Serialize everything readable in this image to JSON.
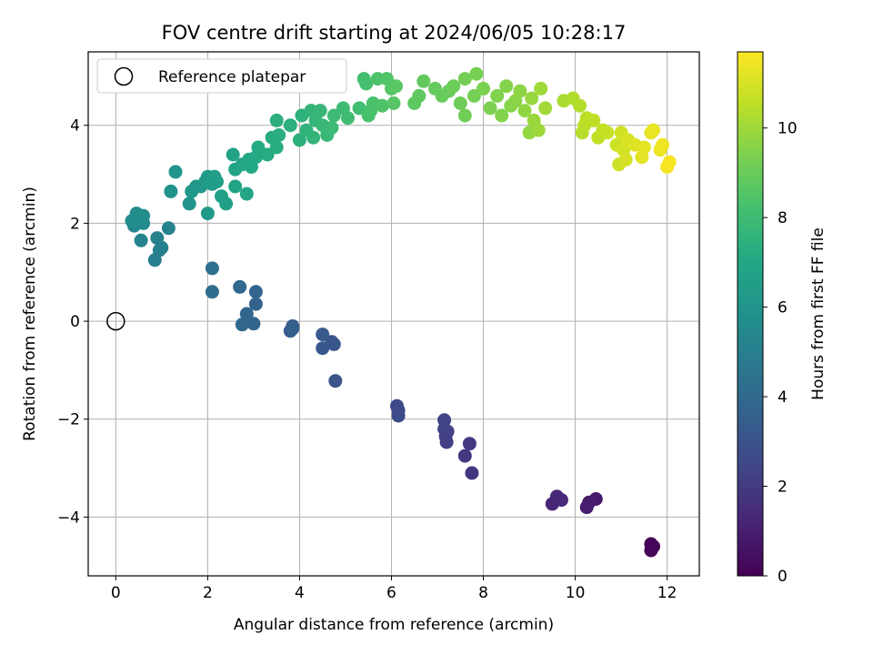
{
  "chart_data": {
    "type": "scatter",
    "title": "FOV centre drift starting at 2024/06/05 10:28:17",
    "xlabel": "Angular distance from reference (arcmin)",
    "ylabel": "Rotation from reference (arcmin)",
    "colorbar_label": "Hours from first FF file",
    "xlim": [
      -0.6,
      12.7
    ],
    "ylim": [
      -5.2,
      5.5
    ],
    "xticks": [
      0,
      2,
      4,
      6,
      8,
      10,
      12
    ],
    "yticks": [
      -4,
      -2,
      0,
      2,
      4
    ],
    "colorbar_range": [
      0,
      11.7
    ],
    "colorbar_ticks": [
      0,
      2,
      4,
      6,
      8,
      10
    ],
    "colormap": "viridis",
    "grid": true,
    "legend": {
      "placement": "top-left",
      "label": "Reference platepar"
    },
    "reference_point": {
      "x": 0,
      "y": 0
    },
    "points": [
      [
        11.65,
        -4.55,
        0.05
      ],
      [
        11.65,
        -4.68,
        0.1
      ],
      [
        11.7,
        -4.6,
        0.15
      ],
      [
        10.45,
        -3.63,
        0.8
      ],
      [
        10.3,
        -3.7,
        0.9
      ],
      [
        10.25,
        -3.8,
        0.95
      ],
      [
        9.5,
        -3.73,
        1.2
      ],
      [
        9.6,
        -3.58,
        1.3
      ],
      [
        9.7,
        -3.65,
        1.35
      ],
      [
        7.75,
        -3.1,
        1.8
      ],
      [
        7.6,
        -2.75,
        1.9
      ],
      [
        7.7,
        -2.5,
        1.95
      ],
      [
        7.2,
        -2.47,
        2.1
      ],
      [
        7.18,
        -2.35,
        2.15
      ],
      [
        7.22,
        -2.25,
        2.2
      ],
      [
        7.15,
        -2.2,
        2.25
      ],
      [
        7.15,
        -2.02,
        2.3
      ],
      [
        6.12,
        -1.73,
        2.6
      ],
      [
        6.15,
        -1.82,
        2.65
      ],
      [
        6.15,
        -1.93,
        2.7
      ],
      [
        4.78,
        -1.22,
        3.0
      ],
      [
        4.75,
        -0.47,
        3.1
      ],
      [
        4.7,
        -0.42,
        3.15
      ],
      [
        4.5,
        -0.55,
        3.2
      ],
      [
        4.5,
        -0.27,
        3.25
      ],
      [
        3.85,
        -0.1,
        3.4
      ],
      [
        3.8,
        -0.2,
        3.45
      ],
      [
        3.85,
        -0.15,
        3.5
      ],
      [
        3.05,
        0.35,
        3.7
      ],
      [
        3.05,
        0.6,
        3.75
      ],
      [
        3.0,
        -0.05,
        3.8
      ],
      [
        2.85,
        0.15,
        3.85
      ],
      [
        2.75,
        -0.07,
        3.9
      ],
      [
        2.7,
        0.7,
        3.95
      ],
      [
        2.1,
        0.6,
        4.2
      ],
      [
        2.1,
        1.08,
        4.3
      ],
      [
        0.85,
        1.25,
        4.9
      ],
      [
        0.95,
        1.45,
        5.0
      ],
      [
        1.0,
        1.5,
        5.05
      ],
      [
        0.9,
        1.7,
        5.1
      ],
      [
        1.15,
        1.9,
        5.2
      ],
      [
        0.55,
        1.65,
        5.3
      ],
      [
        0.4,
        1.95,
        5.45
      ],
      [
        0.5,
        2.05,
        5.5
      ],
      [
        0.6,
        2.0,
        5.55
      ],
      [
        0.45,
        2.2,
        5.6
      ],
      [
        0.6,
        2.15,
        5.65
      ],
      [
        0.35,
        2.05,
        5.7
      ],
      [
        1.2,
        2.65,
        5.9
      ],
      [
        1.3,
        3.05,
        6.0
      ],
      [
        1.6,
        2.4,
        6.05
      ],
      [
        1.65,
        2.65,
        6.1
      ],
      [
        1.75,
        2.75,
        6.15
      ],
      [
        1.85,
        2.75,
        6.2
      ],
      [
        2.0,
        2.2,
        6.25
      ],
      [
        1.95,
        2.85,
        6.3
      ],
      [
        2.0,
        2.95,
        6.35
      ],
      [
        2.1,
        2.8,
        6.4
      ],
      [
        2.15,
        2.95,
        6.45
      ],
      [
        2.2,
        2.85,
        6.5
      ],
      [
        2.3,
        2.55,
        6.55
      ],
      [
        2.4,
        2.4,
        6.6
      ],
      [
        2.55,
        3.4,
        6.7
      ],
      [
        2.6,
        3.1,
        6.75
      ],
      [
        2.6,
        2.75,
        6.8
      ],
      [
        2.75,
        3.2,
        6.85
      ],
      [
        2.85,
        2.6,
        6.9
      ],
      [
        2.9,
        3.3,
        6.95
      ],
      [
        2.95,
        3.15,
        7.0
      ],
      [
        3.05,
        3.35,
        7.05
      ],
      [
        3.1,
        3.55,
        7.1
      ],
      [
        3.3,
        3.4,
        7.15
      ],
      [
        3.4,
        3.75,
        7.2
      ],
      [
        3.5,
        3.55,
        7.25
      ],
      [
        3.55,
        3.8,
        7.3
      ],
      [
        3.5,
        4.1,
        7.35
      ],
      [
        3.8,
        4.0,
        7.4
      ],
      [
        4.0,
        3.7,
        7.45
      ],
      [
        4.05,
        4.2,
        7.5
      ],
      [
        4.15,
        3.9,
        7.55
      ],
      [
        4.25,
        4.3,
        7.6
      ],
      [
        4.3,
        3.75,
        7.65
      ],
      [
        4.35,
        4.1,
        7.7
      ],
      [
        4.45,
        4.3,
        7.75
      ],
      [
        4.5,
        4.0,
        7.8
      ],
      [
        4.6,
        3.8,
        7.85
      ],
      [
        4.7,
        3.95,
        7.9
      ],
      [
        4.75,
        4.2,
        7.95
      ],
      [
        4.95,
        4.35,
        8.0
      ],
      [
        5.05,
        4.15,
        8.05
      ],
      [
        5.3,
        4.35,
        8.1
      ],
      [
        5.4,
        4.95,
        8.15
      ],
      [
        5.45,
        4.85,
        8.2
      ],
      [
        5.5,
        4.2,
        8.25
      ],
      [
        5.55,
        4.3,
        8.3
      ],
      [
        5.6,
        4.45,
        8.35
      ],
      [
        5.7,
        4.95,
        8.4
      ],
      [
        5.8,
        4.4,
        8.45
      ],
      [
        5.9,
        4.95,
        8.5
      ],
      [
        6.0,
        4.75,
        8.55
      ],
      [
        6.05,
        4.45,
        8.6
      ],
      [
        6.1,
        4.8,
        8.65
      ],
      [
        6.5,
        4.45,
        8.75
      ],
      [
        6.6,
        4.6,
        8.8
      ],
      [
        6.7,
        4.9,
        8.85
      ],
      [
        6.95,
        4.75,
        8.9
      ],
      [
        7.1,
        4.6,
        8.95
      ],
      [
        7.25,
        4.7,
        9.0
      ],
      [
        7.35,
        4.8,
        9.05
      ],
      [
        7.5,
        4.45,
        9.1
      ],
      [
        7.6,
        4.2,
        9.15
      ],
      [
        7.6,
        4.95,
        9.2
      ],
      [
        7.8,
        4.6,
        9.25
      ],
      [
        7.85,
        5.05,
        9.3
      ],
      [
        8.0,
        4.75,
        9.35
      ],
      [
        8.15,
        4.35,
        9.4
      ],
      [
        8.3,
        4.6,
        9.45
      ],
      [
        8.4,
        4.2,
        9.5
      ],
      [
        8.5,
        4.8,
        9.55
      ],
      [
        8.6,
        4.4,
        9.6
      ],
      [
        8.7,
        4.5,
        9.65
      ],
      [
        8.8,
        4.7,
        9.7
      ],
      [
        8.9,
        4.3,
        9.75
      ],
      [
        9.0,
        3.85,
        9.8
      ],
      [
        9.05,
        4.55,
        9.85
      ],
      [
        9.1,
        4.1,
        9.9
      ],
      [
        9.2,
        3.9,
        9.95
      ],
      [
        9.25,
        4.75,
        10.0
      ],
      [
        9.35,
        4.35,
        10.05
      ],
      [
        9.75,
        4.5,
        10.2
      ],
      [
        9.95,
        4.55,
        10.3
      ],
      [
        10.1,
        4.4,
        10.35
      ],
      [
        10.15,
        3.85,
        10.4
      ],
      [
        10.2,
        4.0,
        10.45
      ],
      [
        10.25,
        4.15,
        10.5
      ],
      [
        10.4,
        4.1,
        10.55
      ],
      [
        10.5,
        3.75,
        10.6
      ],
      [
        10.6,
        3.9,
        10.65
      ],
      [
        10.7,
        3.85,
        10.7
      ],
      [
        10.9,
        3.6,
        10.8
      ],
      [
        10.95,
        3.2,
        10.85
      ],
      [
        11.0,
        3.85,
        10.9
      ],
      [
        11.05,
        3.5,
        10.95
      ],
      [
        11.1,
        3.3,
        11.0
      ],
      [
        11.15,
        3.7,
        11.05
      ],
      [
        11.3,
        3.6,
        11.15
      ],
      [
        11.45,
        3.35,
        11.2
      ],
      [
        11.5,
        3.55,
        11.25
      ],
      [
        11.65,
        3.85,
        11.3
      ],
      [
        11.7,
        3.9,
        11.35
      ],
      [
        11.85,
        3.5,
        11.4
      ],
      [
        11.9,
        3.6,
        11.45
      ],
      [
        12.0,
        3.15,
        11.55
      ],
      [
        12.05,
        3.25,
        11.6
      ]
    ]
  }
}
